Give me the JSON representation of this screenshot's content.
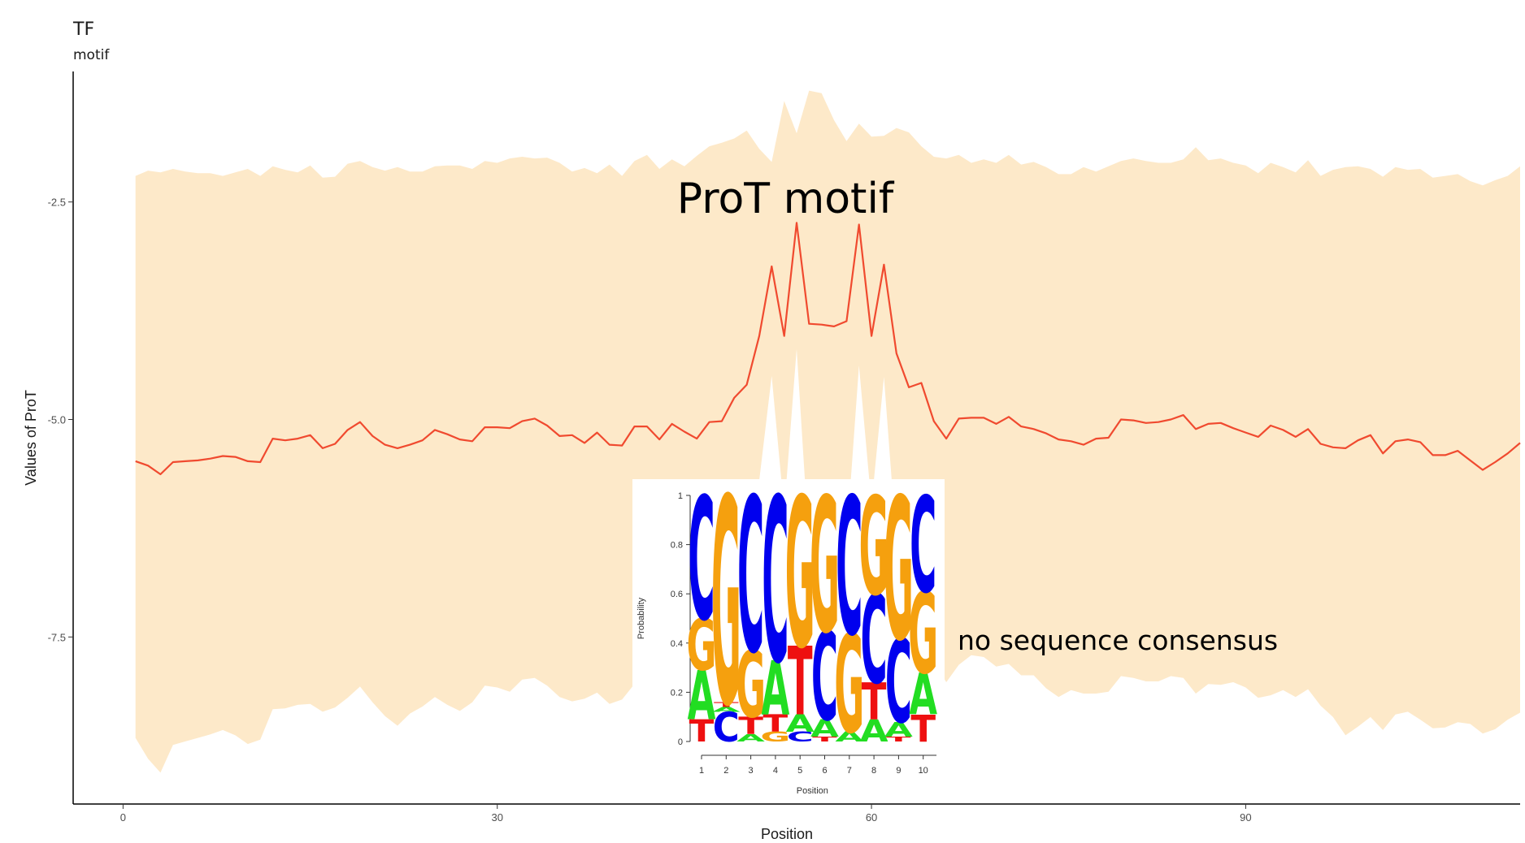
{
  "figure": {
    "title": "TF",
    "subtitle": "motif"
  },
  "chart_data": [
    {
      "type": "area",
      "xlabel": "Position",
      "ylabel": "Values of ProT",
      "xlim": [
        -4,
        112
      ],
      "ylim": [
        -9.42,
        -1.0
      ],
      "x_ticks": [
        0,
        30,
        60,
        90
      ],
      "y_ticks": [
        -2.5,
        -5.0,
        -7.5
      ],
      "colors": {
        "line": "#f04a2f",
        "band": "#fde9c9",
        "axis": "#000000"
      },
      "annotations": {
        "title": "ProT motif",
        "consensus_note": "no sequence consensus"
      },
      "x_start": 1,
      "mean": [
        -5.48,
        -5.53,
        -5.63,
        -5.49,
        -5.48,
        -5.47,
        -5.45,
        -5.42,
        -5.43,
        -5.48,
        -5.49,
        -5.22,
        -5.24,
        -5.22,
        -5.18,
        -5.33,
        -5.28,
        -5.12,
        -5.03,
        -5.19,
        -5.29,
        -5.33,
        -5.29,
        -5.24,
        -5.12,
        -5.17,
        -5.23,
        -5.25,
        -5.09,
        -5.09,
        -5.1,
        -5.02,
        -4.99,
        -5.07,
        -5.19,
        -5.18,
        -5.27,
        -5.15,
        -5.29,
        -5.3,
        -5.08,
        -5.08,
        -5.23,
        -5.05,
        -5.14,
        -5.22,
        -5.03,
        -5.02,
        -4.75,
        -4.6,
        -4.04,
        -3.24,
        -4.04,
        -2.74,
        -3.9,
        -3.91,
        -3.93,
        -3.87,
        -2.76,
        -4.04,
        -3.22,
        -4.24,
        -4.63,
        -4.58,
        -5.02,
        -5.22,
        -4.99,
        -4.98,
        -4.98,
        -5.05,
        -4.97,
        -5.08,
        -5.11,
        -5.16,
        -5.23,
        -5.25,
        -5.29,
        -5.22,
        -5.21,
        -5.0,
        -5.01,
        -5.04,
        -5.03,
        -5.0,
        -4.95,
        -5.11,
        -5.05,
        -5.04,
        -5.1,
        -5.15,
        -5.2,
        -5.07,
        -5.12,
        -5.2,
        -5.11,
        -5.28,
        -5.32,
        -5.33,
        -5.24,
        -5.18,
        -5.39,
        -5.25,
        -5.23,
        -5.26,
        -5.41,
        -5.41,
        -5.36,
        -5.47,
        -5.58,
        -5.49,
        -5.39,
        -5.27
      ],
      "upper": [
        -2.2,
        -2.14,
        -2.16,
        -2.12,
        -2.15,
        -2.17,
        -2.17,
        -2.2,
        -2.16,
        -2.12,
        -2.2,
        -2.09,
        -2.13,
        -2.16,
        -2.08,
        -2.22,
        -2.21,
        -2.06,
        -2.03,
        -2.1,
        -2.14,
        -2.1,
        -2.15,
        -2.15,
        -2.09,
        -2.08,
        -2.08,
        -2.12,
        -2.03,
        -2.05,
        -2.0,
        -1.98,
        -2.0,
        -1.99,
        -2.05,
        -2.15,
        -2.11,
        -2.17,
        -2.07,
        -2.2,
        -2.03,
        -1.96,
        -2.12,
        -2.01,
        -2.09,
        -1.97,
        -1.86,
        -1.82,
        -1.77,
        -1.68,
        -1.89,
        -2.04,
        -1.34,
        -1.71,
        -1.22,
        -1.25,
        -1.56,
        -1.8,
        -1.6,
        -1.75,
        -1.74,
        -1.65,
        -1.7,
        -1.86,
        -1.98,
        -2.0,
        -1.96,
        -2.05,
        -2.01,
        -2.05,
        -1.96,
        -2.07,
        -2.04,
        -2.1,
        -2.18,
        -2.18,
        -2.1,
        -2.15,
        -2.09,
        -2.03,
        -2.0,
        -2.03,
        -2.05,
        -2.05,
        -2.01,
        -1.87,
        -2.02,
        -2.0,
        -2.05,
        -2.08,
        -2.17,
        -2.05,
        -2.1,
        -2.16,
        -2.02,
        -2.2,
        -2.13,
        -2.1,
        -2.09,
        -2.12,
        -2.21,
        -2.1,
        -2.13,
        -2.12,
        -2.22,
        -2.2,
        -2.18,
        -2.26,
        -2.31,
        -2.25,
        -2.2,
        -2.09
      ],
      "lower": [
        -8.66,
        -8.9,
        -9.06,
        -8.74,
        -8.7,
        -8.66,
        -8.62,
        -8.57,
        -8.63,
        -8.73,
        -8.68,
        -8.33,
        -8.32,
        -8.28,
        -8.27,
        -8.36,
        -8.31,
        -8.2,
        -8.07,
        -8.25,
        -8.41,
        -8.52,
        -8.38,
        -8.3,
        -8.19,
        -8.28,
        -8.35,
        -8.25,
        -8.06,
        -8.08,
        -8.13,
        -7.99,
        -7.97,
        -8.06,
        -8.19,
        -8.24,
        -8.21,
        -8.14,
        -8.27,
        -8.22,
        -8.04,
        -8.06,
        -8.19,
        -8.02,
        -8.18,
        -8.3,
        -8.11,
        -7.96,
        -7.46,
        -6.94,
        -5.7,
        -4.5,
        -6.05,
        -4.19,
        -6.46,
        -6.72,
        -6.54,
        -6.38,
        -4.38,
        -5.98,
        -4.51,
        -6.43,
        -6.99,
        -7.31,
        -7.79,
        -8.02,
        -7.82,
        -7.71,
        -7.73,
        -7.84,
        -7.81,
        -7.94,
        -7.94,
        -8.09,
        -8.19,
        -8.11,
        -8.15,
        -8.15,
        -8.13,
        -7.95,
        -7.97,
        -8.01,
        -8.01,
        -7.95,
        -7.97,
        -8.15,
        -8.04,
        -8.05,
        -8.02,
        -8.08,
        -8.2,
        -8.17,
        -8.11,
        -8.19,
        -8.1,
        -8.29,
        -8.42,
        -8.63,
        -8.53,
        -8.42,
        -8.57,
        -8.39,
        -8.36,
        -8.45,
        -8.55,
        -8.54,
        -8.48,
        -8.5,
        -8.61,
        -8.56,
        -8.45,
        -8.37
      ]
    },
    {
      "type": "sequence-logo",
      "xlabel": "Position",
      "ylabel": "Probability",
      "ylim": [
        0,
        1
      ],
      "y_ticks": [
        "0",
        "0.2",
        "0.4",
        "0.6",
        "0.8",
        "1"
      ],
      "categories": [
        "1",
        "2",
        "3",
        "4",
        "5",
        "6",
        "7",
        "8",
        "9",
        "10"
      ],
      "letter_colors": {
        "A": "#22dd22",
        "C": "#0000ee",
        "G": "#f5a00e",
        "T": "#ee1010"
      },
      "columns": [
        [
          [
            "T",
            0.09
          ],
          [
            "A",
            0.2
          ],
          [
            "G",
            0.21
          ],
          [
            "C",
            0.5
          ]
        ],
        [
          [
            "C",
            0.12
          ],
          [
            "A",
            0.02
          ],
          [
            "T",
            0.02
          ],
          [
            "G",
            0.84
          ]
        ],
        [
          [
            "A",
            0.03
          ],
          [
            "T",
            0.07
          ],
          [
            "G",
            0.27
          ],
          [
            "C",
            0.63
          ]
        ],
        [
          [
            "G",
            0.04
          ],
          [
            "T",
            0.07
          ],
          [
            "A",
            0.22
          ],
          [
            "C",
            0.67
          ]
        ],
        [
          [
            "C",
            0.04
          ],
          [
            "A",
            0.07
          ],
          [
            "T",
            0.28
          ],
          [
            "G",
            0.61
          ]
        ],
        [
          [
            "T",
            0.02
          ],
          [
            "A",
            0.07
          ],
          [
            "C",
            0.36
          ],
          [
            "G",
            0.55
          ]
        ],
        [
          [
            "A",
            0.04
          ],
          [
            "G",
            0.4
          ],
          [
            "C",
            0.56
          ]
        ],
        [
          [
            "A",
            0.09
          ],
          [
            "T",
            0.15
          ],
          [
            "C",
            0.36
          ],
          [
            "G",
            0.4
          ]
        ],
        [
          [
            "T",
            0.02
          ],
          [
            "A",
            0.06
          ],
          [
            "C",
            0.34
          ],
          [
            "G",
            0.58
          ]
        ],
        [
          [
            "T",
            0.11
          ],
          [
            "A",
            0.17
          ],
          [
            "G",
            0.33
          ],
          [
            "C",
            0.39
          ]
        ]
      ]
    }
  ]
}
